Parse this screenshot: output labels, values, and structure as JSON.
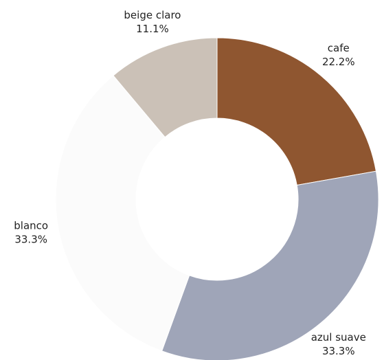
{
  "chart_data": {
    "type": "donut",
    "categories": [
      "cafe",
      "azul suave",
      "blanco",
      "beige claro"
    ],
    "values": [
      22.2,
      33.3,
      33.3,
      11.1
    ],
    "value_labels": [
      "22.2%",
      "33.3%",
      "33.3%",
      "11.1%"
    ],
    "colors": [
      "#8f5630",
      "#9fa5b8",
      "#fbfbfb",
      "#cbc1b7"
    ]
  }
}
